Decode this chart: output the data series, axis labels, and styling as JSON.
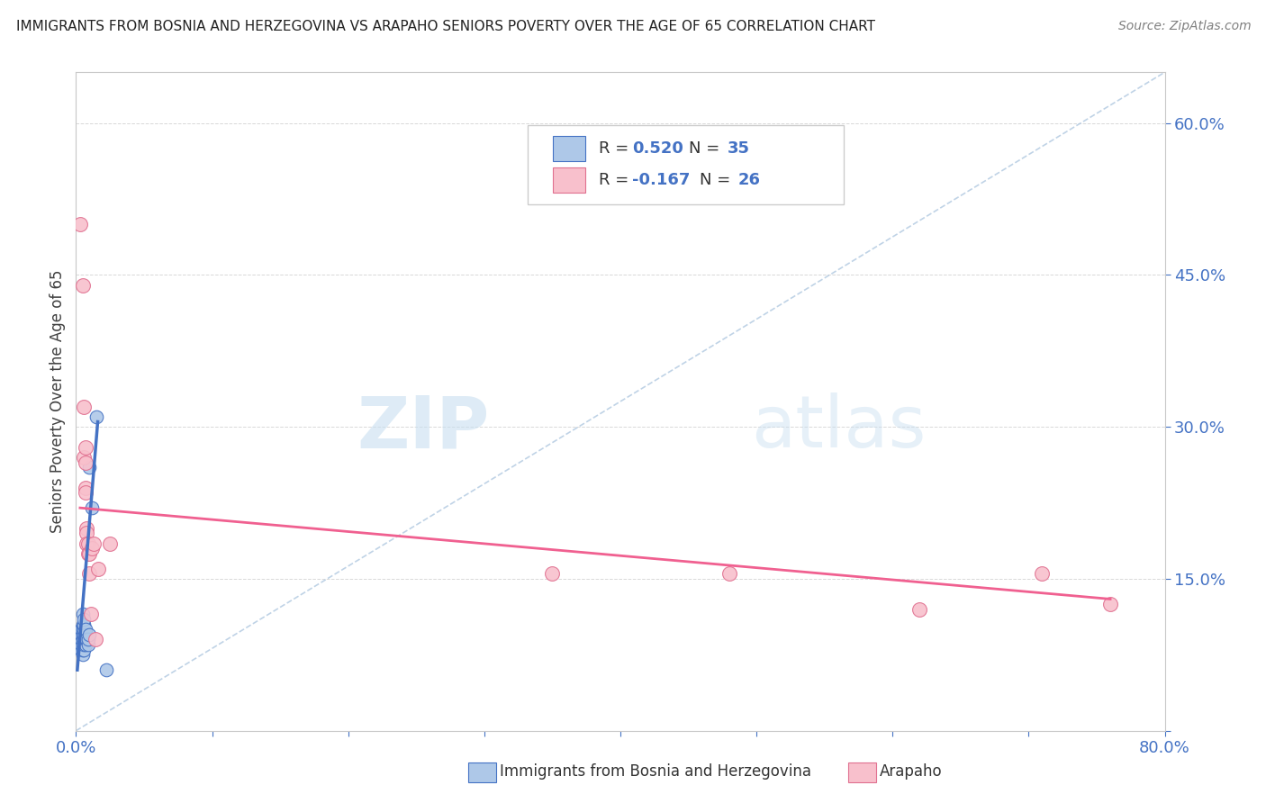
{
  "title": "IMMIGRANTS FROM BOSNIA AND HERZEGOVINA VS ARAPAHO SENIORS POVERTY OVER THE AGE OF 65 CORRELATION CHART",
  "source": "Source: ZipAtlas.com",
  "ylabel": "Seniors Poverty Over the Age of 65",
  "xlim": [
    0.0,
    0.8
  ],
  "ylim": [
    0.0,
    0.65
  ],
  "background_color": "#ffffff",
  "watermark_zip": "ZIP",
  "watermark_atlas": "atlas",
  "blue_color": "#aec8e8",
  "blue_edge_color": "#4472c4",
  "pink_color": "#f8c0cc",
  "pink_edge_color": "#e07090",
  "blue_line_color": "#4472c4",
  "pink_line_color": "#f06090",
  "diag_color": "#b0c8e0",
  "axis_color": "#c8c8c8",
  "grid_color": "#d8d8d8",
  "text_color_blue": "#4472c4",
  "text_color_dark": "#404040",
  "text_color_source": "#808080",
  "blue_scatter": [
    [
      0.002,
      0.085
    ],
    [
      0.003,
      0.09
    ],
    [
      0.003,
      0.095
    ],
    [
      0.004,
      0.08
    ],
    [
      0.004,
      0.085
    ],
    [
      0.004,
      0.09
    ],
    [
      0.004,
      0.095
    ],
    [
      0.004,
      0.1
    ],
    [
      0.005,
      0.075
    ],
    [
      0.005,
      0.08
    ],
    [
      0.005,
      0.085
    ],
    [
      0.005,
      0.09
    ],
    [
      0.005,
      0.095
    ],
    [
      0.005,
      0.1
    ],
    [
      0.005,
      0.105
    ],
    [
      0.005,
      0.115
    ],
    [
      0.006,
      0.08
    ],
    [
      0.006,
      0.085
    ],
    [
      0.006,
      0.09
    ],
    [
      0.006,
      0.095
    ],
    [
      0.006,
      0.1
    ],
    [
      0.006,
      0.105
    ],
    [
      0.006,
      0.11
    ],
    [
      0.007,
      0.085
    ],
    [
      0.007,
      0.09
    ],
    [
      0.007,
      0.095
    ],
    [
      0.007,
      0.1
    ],
    [
      0.008,
      0.09
    ],
    [
      0.009,
      0.085
    ],
    [
      0.009,
      0.09
    ],
    [
      0.01,
      0.095
    ],
    [
      0.01,
      0.26
    ],
    [
      0.012,
      0.22
    ],
    [
      0.015,
      0.31
    ],
    [
      0.022,
      0.06
    ]
  ],
  "pink_scatter": [
    [
      0.003,
      0.5
    ],
    [
      0.005,
      0.44
    ],
    [
      0.006,
      0.32
    ],
    [
      0.006,
      0.27
    ],
    [
      0.007,
      0.265
    ],
    [
      0.007,
      0.28
    ],
    [
      0.007,
      0.24
    ],
    [
      0.007,
      0.235
    ],
    [
      0.008,
      0.2
    ],
    [
      0.008,
      0.195
    ],
    [
      0.008,
      0.185
    ],
    [
      0.009,
      0.185
    ],
    [
      0.009,
      0.175
    ],
    [
      0.01,
      0.175
    ],
    [
      0.01,
      0.155
    ],
    [
      0.011,
      0.115
    ],
    [
      0.012,
      0.18
    ],
    [
      0.013,
      0.185
    ],
    [
      0.014,
      0.09
    ],
    [
      0.016,
      0.16
    ],
    [
      0.025,
      0.185
    ],
    [
      0.35,
      0.155
    ],
    [
      0.48,
      0.155
    ],
    [
      0.62,
      0.12
    ],
    [
      0.71,
      0.155
    ],
    [
      0.76,
      0.125
    ]
  ],
  "blue_line_x": [
    0.001,
    0.016
  ],
  "blue_line_y": [
    0.06,
    0.305
  ],
  "pink_line_x": [
    0.003,
    0.76
  ],
  "pink_line_y": [
    0.22,
    0.13
  ],
  "diagonal_line_x": [
    0.0,
    0.8
  ],
  "diagonal_line_y": [
    0.0,
    0.65
  ]
}
